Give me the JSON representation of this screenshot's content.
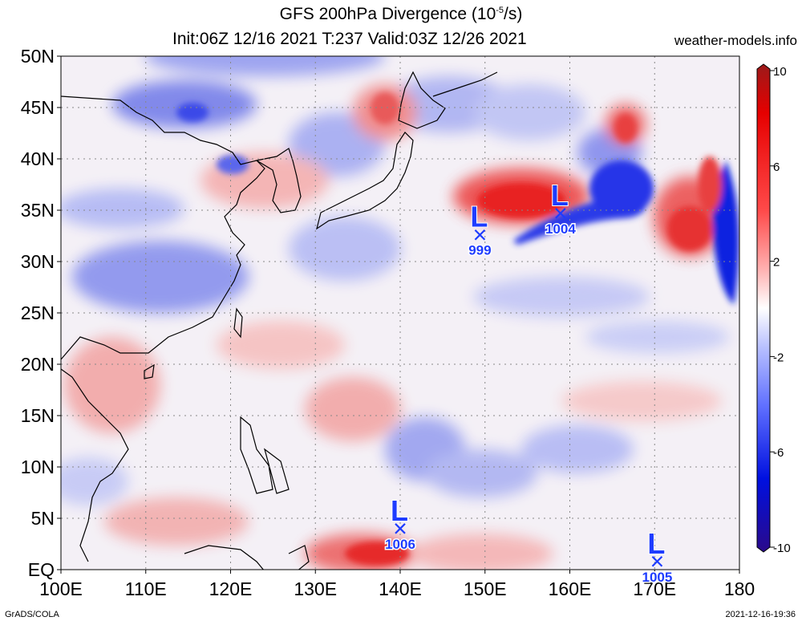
{
  "header": {
    "title_prefix": "GFS 200hPa Divergence (10",
    "title_exp": "-5",
    "title_suffix": "/s)",
    "subtitle": "Init:06Z 12/16 2021 T:237 Valid:03Z 12/26 2021",
    "site": "weather-models.info"
  },
  "footer": {
    "left": "GrADS/COLA",
    "right": "2021-12-16-19:36"
  },
  "map": {
    "lon_range": [
      100,
      180
    ],
    "lat_range": [
      0,
      50
    ],
    "lat_ticks": [
      {
        "lat": 50,
        "label": "50N"
      },
      {
        "lat": 45,
        "label": "45N"
      },
      {
        "lat": 40,
        "label": "40N"
      },
      {
        "lat": 35,
        "label": "35N"
      },
      {
        "lat": 30,
        "label": "30N"
      },
      {
        "lat": 25,
        "label": "25N"
      },
      {
        "lat": 20,
        "label": "20N"
      },
      {
        "lat": 15,
        "label": "15N"
      },
      {
        "lat": 10,
        "label": "10N"
      },
      {
        "lat": 5,
        "label": "5N"
      },
      {
        "lat": 0,
        "label": "EQ"
      }
    ],
    "lon_ticks": [
      {
        "lon": 100,
        "label": "100E"
      },
      {
        "lon": 110,
        "label": "110E"
      },
      {
        "lon": 120,
        "label": "120E"
      },
      {
        "lon": 130,
        "label": "130E"
      },
      {
        "lon": 140,
        "label": "140E"
      },
      {
        "lon": 150,
        "label": "150E"
      },
      {
        "lon": 160,
        "label": "160E"
      },
      {
        "lon": 170,
        "label": "170E"
      },
      {
        "lon": 180,
        "label": "180"
      }
    ],
    "lows": [
      {
        "lon": 149.4,
        "lat": 32.6,
        "pressure": "999"
      },
      {
        "lon": 158.9,
        "lat": 34.7,
        "pressure": "1004"
      },
      {
        "lon": 140.0,
        "lat": 4.0,
        "pressure": "1006"
      },
      {
        "lon": 170.3,
        "lat": 0.8,
        "pressure": "1005"
      }
    ],
    "low_symbol": "L",
    "low_color": "#1e3cff"
  },
  "colorbar": {
    "ticks": [
      {
        "value": 10,
        "label": "10"
      },
      {
        "value": 6,
        "label": "6"
      },
      {
        "value": 2,
        "label": "2"
      },
      {
        "value": -2,
        "label": "-2"
      },
      {
        "value": -6,
        "label": "-6"
      },
      {
        "value": -10,
        "label": "-10"
      }
    ],
    "colors": [
      "#9c1a1a",
      "#e60000",
      "#ff4a4a",
      "#ff9a9a",
      "#ffd0d0",
      "#ffffff",
      "#cfd6ff",
      "#9aa6ff",
      "#4a5cff",
      "#0010e0",
      "#2a0a8a"
    ]
  }
}
